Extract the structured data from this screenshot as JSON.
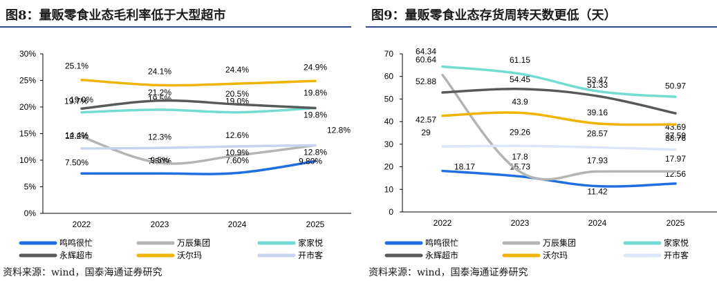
{
  "charts": [
    {
      "title": "图8：量贩零食业态毛利率低于大型超市",
      "source": "资料来源：wind，国泰海通证券研究"
    },
    {
      "title": "图9：量贩零食业态存货周转天数更低（天）",
      "source": "资料来源：wind，国泰海通证券研究"
    }
  ],
  "chart_data": [
    {
      "type": "line",
      "title": "图8：量贩零食业态毛利率低于大型超市",
      "x": [
        "2022",
        "2023",
        "2024",
        "2025"
      ],
      "yticks": [
        "0%",
        "5%",
        "10%",
        "15%",
        "20%",
        "25%",
        "30%"
      ],
      "ylim": [
        0,
        30
      ],
      "series": [
        {
          "name": "鸣鸣很忙",
          "color": "#1f6fe0",
          "values": [
            7.5,
            7.5,
            7.6,
            9.8
          ],
          "labels": [
            "7.50%",
            "7.50%",
            "7.60%",
            "9.80%"
          ]
        },
        {
          "name": "万辰集团",
          "color": "#b4b4b4",
          "values": [
            14.4,
            9.5,
            10.9,
            12.8
          ],
          "labels": [
            "14.4%",
            "9.5%",
            "10.9%",
            "12.8%"
          ]
        },
        {
          "name": "家家悦",
          "color": "#72dcd0",
          "values": [
            19.0,
            19.5,
            19.0,
            19.8
          ],
          "labels": [
            "19.0%",
            "19.5%",
            "19.0%",
            "19.8%"
          ]
        },
        {
          "name": "永辉超市",
          "color": "#595959",
          "values": [
            19.7,
            21.2,
            20.5,
            19.8
          ],
          "labels": [
            "19.7%",
            "21.2%",
            "20.5%",
            "19.8%"
          ]
        },
        {
          "name": "沃尔玛",
          "color": "#f0b400",
          "values": [
            25.1,
            24.1,
            24.4,
            24.9
          ],
          "labels": [
            "25.1%",
            "24.1%",
            "24.4%",
            "24.9%"
          ]
        },
        {
          "name": "开市客",
          "color": "#c7d3ef",
          "values": [
            12.2,
            12.3,
            12.6,
            12.8
          ],
          "labels": [
            "12.2%",
            "12.3%",
            "12.6%",
            "12.8%"
          ]
        }
      ]
    },
    {
      "type": "line",
      "title": "图9：量贩零食业态存货周转天数更低（天）",
      "x": [
        "2022",
        "2023",
        "2024",
        "2025"
      ],
      "yticks": [
        "0",
        "10",
        "20",
        "30",
        "40",
        "50",
        "60",
        "70"
      ],
      "ylim": [
        0,
        70
      ],
      "series": [
        {
          "name": "鸣鸣很忙",
          "color": "#1f6fe0",
          "values": [
            18.17,
            15.73,
            11.42,
            12.56
          ],
          "labels": [
            "18.17",
            "15.73",
            "11.42",
            "12.56"
          ]
        },
        {
          "name": "万辰集团",
          "color": "#b4b4b4",
          "values": [
            60.64,
            17.8,
            17.93,
            17.97
          ],
          "labels": [
            "60.64",
            "17.8",
            "17.93",
            "17.97"
          ]
        },
        {
          "name": "家家悦",
          "color": "#72dcd0",
          "values": [
            64.34,
            61.15,
            53.47,
            50.97
          ],
          "labels": [
            "64.34",
            "61.15",
            "53.47",
            "50.97"
          ]
        },
        {
          "name": "永辉超市",
          "color": "#595959",
          "values": [
            52.88,
            54.45,
            51.33,
            43.69
          ],
          "labels": [
            "52.88",
            "54.45",
            "51.33",
            "43.69"
          ]
        },
        {
          "name": "沃尔玛",
          "color": "#f0b400",
          "values": [
            42.57,
            43.9,
            39.16,
            38.76
          ],
          "labels": [
            "42.57",
            "43.9",
            "39.16",
            "38.76"
          ]
        },
        {
          "name": "开市客",
          "color": "#dde6f8",
          "values": [
            29,
            29.26,
            28.57,
            27.59
          ],
          "labels": [
            "29",
            "29.26",
            "28.57",
            "27.59"
          ]
        }
      ]
    }
  ]
}
